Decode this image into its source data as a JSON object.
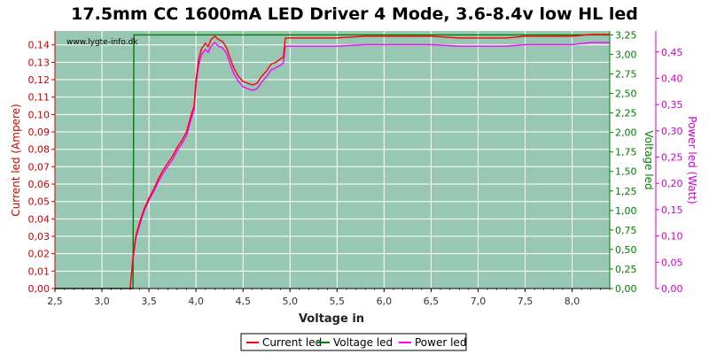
{
  "chart_data": {
    "type": "line",
    "title": "17.5mm CC 1600mA LED Driver 4 Mode, 3.6-8.4v low HL led",
    "watermark": "www.lygte-info.dk",
    "xlabel": "Voltage in",
    "ylabel_left": "Current led (Ampere)",
    "ylabel_right1": "Voltage led",
    "ylabel_right2": "Power led (Watt)",
    "xlim": [
      2.5,
      8.4
    ],
    "ylim_left": [
      0,
      0.148
    ],
    "ylim_right1": [
      0,
      3.3
    ],
    "ylim_right2": [
      0,
      0.49
    ],
    "x_ticks": [
      "2,5",
      "3,0",
      "3,5",
      "4,0",
      "4,5",
      "5,0",
      "5,5",
      "6,0",
      "6,5",
      "7,0",
      "7,5",
      "8,0"
    ],
    "x_tick_values": [
      2.5,
      3.0,
      3.5,
      4.0,
      4.5,
      5.0,
      5.5,
      6.0,
      6.5,
      7.0,
      7.5,
      8.0
    ],
    "y_left_ticks": [
      "0,00",
      "0,01",
      "0,02",
      "0,03",
      "0,04",
      "0,05",
      "0,06",
      "0,07",
      "0,08",
      "0,09",
      "0,10",
      "0,11",
      "0,12",
      "0,13",
      "0,14"
    ],
    "y_left_tick_values": [
      0,
      0.01,
      0.02,
      0.03,
      0.04,
      0.05,
      0.06,
      0.07,
      0.08,
      0.09,
      0.1,
      0.11,
      0.12,
      0.13,
      0.14
    ],
    "y_right1_ticks": [
      "0,00",
      "0,25",
      "0,50",
      "0,75",
      "1,00",
      "1,25",
      "1,50",
      "1,75",
      "2,00",
      "2,25",
      "2,50",
      "2,75",
      "3,00",
      "3,25"
    ],
    "y_right1_tick_values": [
      0,
      0.25,
      0.5,
      0.75,
      1.0,
      1.25,
      1.5,
      1.75,
      2.0,
      2.25,
      2.5,
      2.75,
      3.0,
      3.25
    ],
    "y_right2_ticks": [
      "0,00",
      "0,05",
      "0,10",
      "0,15",
      "0,20",
      "0,25",
      "0,30",
      "0,35",
      "0,40",
      "0,45"
    ],
    "y_right2_tick_values": [
      0,
      0.05,
      0.1,
      0.15,
      0.2,
      0.25,
      0.3,
      0.35,
      0.4,
      0.45
    ],
    "grid": true,
    "legend_position": "bottom-center",
    "colors": {
      "plot_background": "#98c8b4",
      "grid": "#ffffff",
      "current": "#ff0000",
      "voltage": "#008000",
      "power": "#ff00ff",
      "left_axis": "#cc0000",
      "right1_axis": "#008000",
      "right2_axis": "#cc00cc"
    },
    "series": [
      {
        "name": "Current led",
        "axis": "left",
        "x": [
          3.3,
          3.33,
          3.36,
          3.4,
          3.45,
          3.5,
          3.55,
          3.6,
          3.65,
          3.7,
          3.75,
          3.8,
          3.85,
          3.9,
          3.95,
          3.98,
          4.0,
          4.03,
          4.06,
          4.1,
          4.13,
          4.16,
          4.2,
          4.24,
          4.28,
          4.32,
          4.36,
          4.4,
          4.45,
          4.5,
          4.55,
          4.6,
          4.65,
          4.7,
          4.75,
          4.8,
          4.85,
          4.9,
          4.93,
          4.95,
          5.0,
          5.2,
          5.5,
          5.8,
          6.0,
          6.3,
          6.5,
          6.8,
          7.0,
          7.3,
          7.5,
          7.8,
          8.0,
          8.2,
          8.4
        ],
        "values": [
          0.0,
          0.018,
          0.03,
          0.038,
          0.046,
          0.052,
          0.057,
          0.063,
          0.068,
          0.072,
          0.076,
          0.081,
          0.085,
          0.09,
          0.1,
          0.105,
          0.12,
          0.132,
          0.138,
          0.141,
          0.139,
          0.143,
          0.145,
          0.143,
          0.142,
          0.139,
          0.133,
          0.127,
          0.122,
          0.119,
          0.118,
          0.117,
          0.118,
          0.122,
          0.125,
          0.129,
          0.13,
          0.132,
          0.133,
          0.144,
          0.144,
          0.144,
          0.144,
          0.145,
          0.145,
          0.145,
          0.145,
          0.144,
          0.144,
          0.144,
          0.145,
          0.145,
          0.145,
          0.146,
          0.146
        ]
      },
      {
        "name": "Voltage led",
        "axis": "right1",
        "x": [
          2.5,
          3.33,
          3.34,
          8.4
        ],
        "values": [
          0.0,
          0.0,
          3.25,
          3.25
        ]
      },
      {
        "name": "Power led",
        "axis": "right2",
        "x": [
          3.3,
          3.33,
          3.36,
          3.4,
          3.45,
          3.5,
          3.55,
          3.6,
          3.65,
          3.7,
          3.75,
          3.8,
          3.85,
          3.9,
          3.95,
          3.98,
          4.0,
          4.03,
          4.06,
          4.1,
          4.13,
          4.16,
          4.2,
          4.24,
          4.28,
          4.32,
          4.36,
          4.4,
          4.45,
          4.5,
          4.55,
          4.6,
          4.65,
          4.7,
          4.75,
          4.8,
          4.85,
          4.9,
          4.93,
          4.95,
          5.0,
          5.2,
          5.5,
          5.8,
          6.0,
          6.3,
          6.5,
          6.8,
          7.0,
          7.3,
          7.5,
          7.8,
          8.0,
          8.2,
          8.4
        ],
        "values": [
          0.0,
          0.055,
          0.095,
          0.12,
          0.148,
          0.168,
          0.184,
          0.203,
          0.219,
          0.232,
          0.245,
          0.262,
          0.275,
          0.291,
          0.323,
          0.339,
          0.388,
          0.426,
          0.445,
          0.455,
          0.449,
          0.461,
          0.468,
          0.461,
          0.458,
          0.449,
          0.429,
          0.41,
          0.394,
          0.384,
          0.38,
          0.377,
          0.38,
          0.393,
          0.403,
          0.416,
          0.42,
          0.425,
          0.429,
          0.461,
          0.461,
          0.461,
          0.461,
          0.464,
          0.464,
          0.464,
          0.464,
          0.461,
          0.461,
          0.461,
          0.464,
          0.464,
          0.464,
          0.468,
          0.468
        ]
      }
    ]
  }
}
